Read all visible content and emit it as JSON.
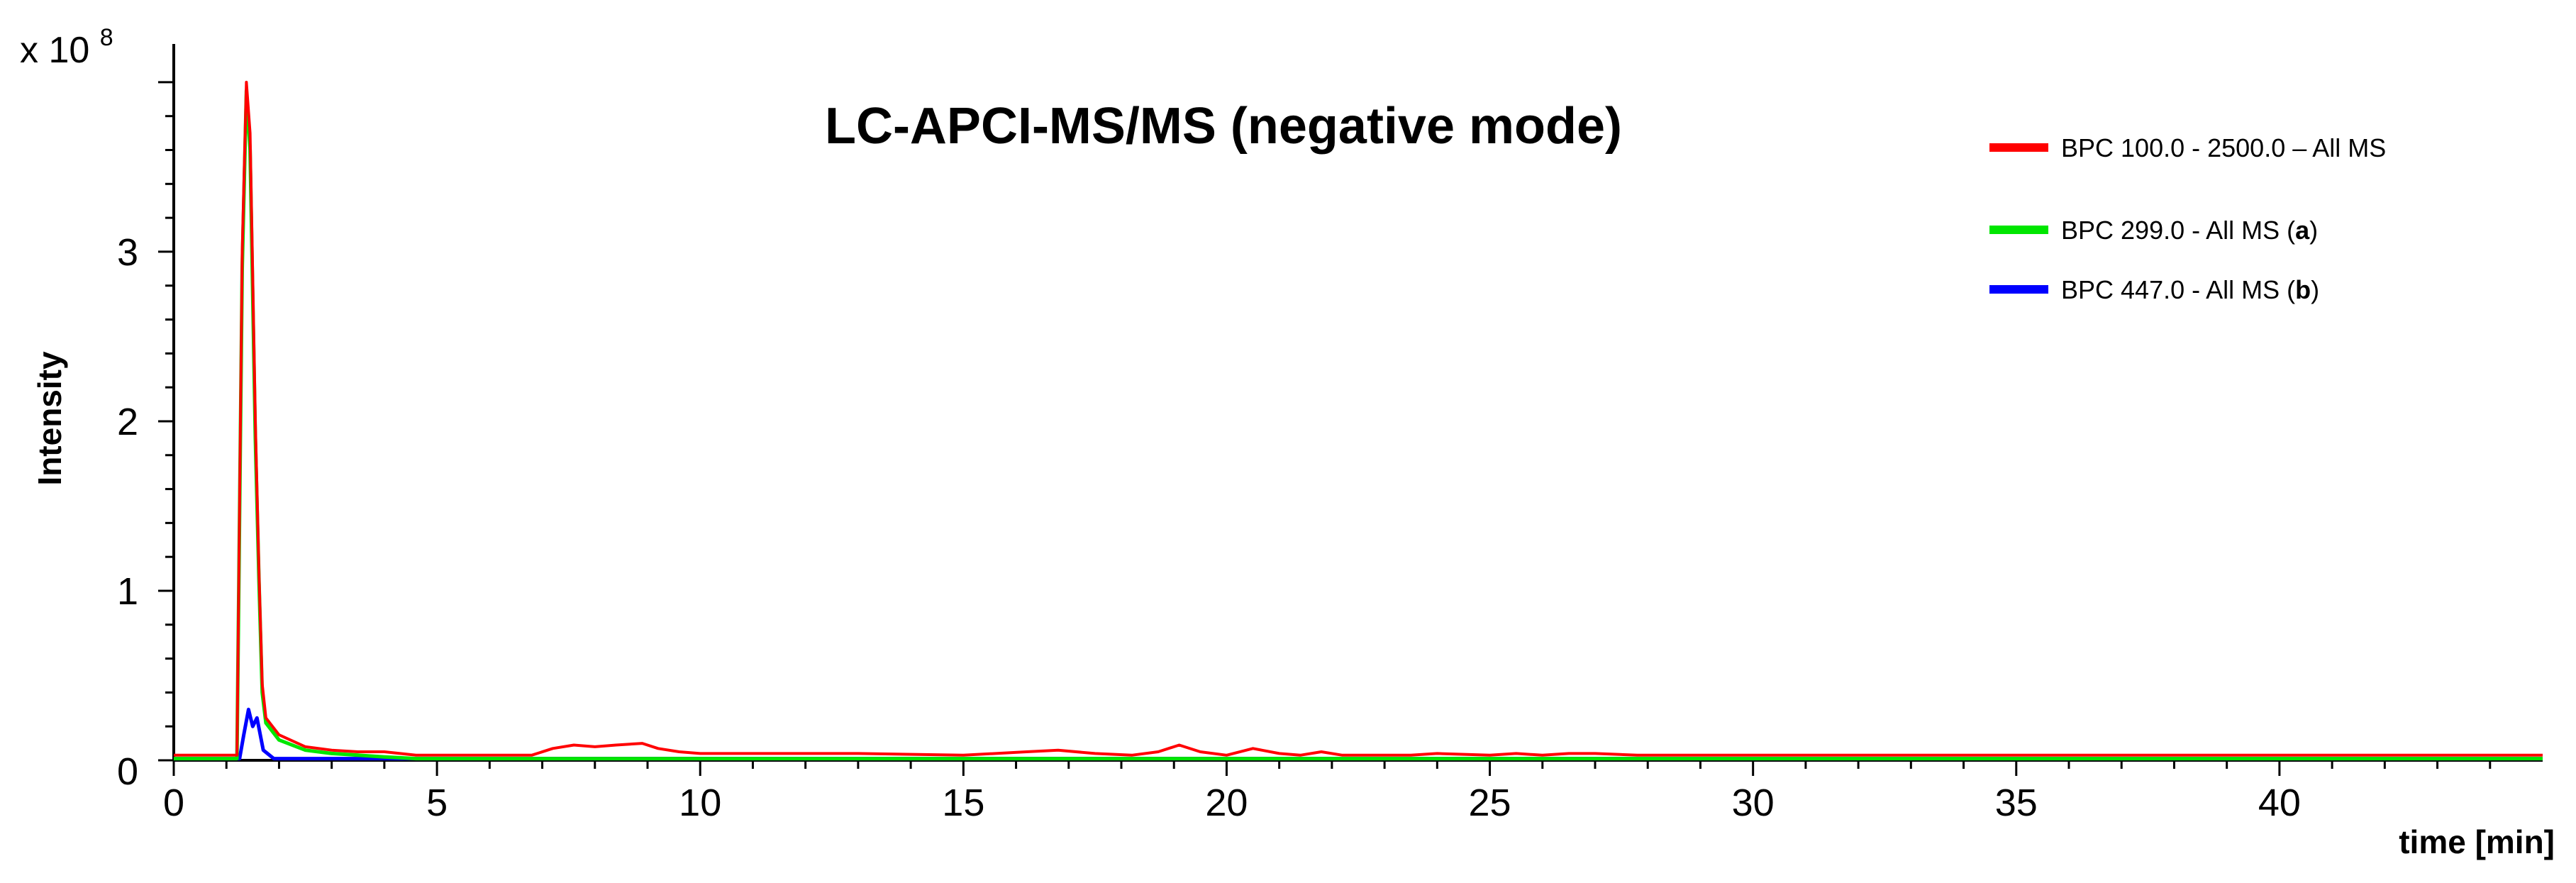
{
  "chart_data": {
    "type": "line",
    "title": "LC-APCI-MS/MS (negative mode)",
    "xlabel": "time [min]",
    "ylabel": "Intensity",
    "y_multiplier": {
      "base": "x 10",
      "exponent": "8"
    },
    "xlim": [
      0,
      45
    ],
    "ylim": [
      0,
      4.1
    ],
    "x_ticks": [
      0,
      5,
      10,
      15,
      20,
      25,
      30,
      35,
      40
    ],
    "y_ticks": [
      0,
      1,
      2,
      3
    ],
    "grid": false,
    "legend_position": "top-right",
    "series": [
      {
        "name": "BPC 100.0 - 2500.0 – All MS",
        "color": "#ff0000",
        "x": [
          0,
          1.2,
          1.3,
          1.38,
          1.45,
          1.55,
          1.62,
          1.68,
          1.75,
          2.0,
          2.5,
          3.0,
          3.5,
          4.0,
          4.3,
          4.6,
          5.0,
          6.8,
          7.2,
          7.6,
          8.0,
          8.4,
          8.9,
          9.2,
          9.6,
          10.0,
          11.0,
          13.0,
          15.0,
          16.2,
          16.8,
          17.5,
          18.2,
          18.7,
          19.1,
          19.5,
          20.0,
          20.5,
          21.0,
          21.4,
          21.8,
          22.2,
          23.5,
          24.0,
          25.0,
          25.5,
          26.0,
          26.5,
          27.0,
          27.8,
          28.3,
          30.0,
          35.0,
          40.0,
          45.0
        ],
        "y": [
          0.03,
          0.03,
          3.0,
          4.0,
          3.7,
          2.0,
          1.1,
          0.45,
          0.25,
          0.15,
          0.08,
          0.06,
          0.05,
          0.05,
          0.04,
          0.03,
          0.03,
          0.03,
          0.07,
          0.09,
          0.08,
          0.09,
          0.1,
          0.07,
          0.05,
          0.04,
          0.04,
          0.04,
          0.03,
          0.05,
          0.06,
          0.04,
          0.03,
          0.05,
          0.09,
          0.05,
          0.03,
          0.07,
          0.04,
          0.03,
          0.05,
          0.03,
          0.03,
          0.04,
          0.03,
          0.04,
          0.03,
          0.04,
          0.04,
          0.03,
          0.03,
          0.03,
          0.03,
          0.03,
          0.03
        ]
      },
      {
        "name": "BPC 299.0 - All MS (a)",
        "name_plain": "BPC 299.0 - All MS (",
        "name_bold": "a",
        "name_close": ")",
        "color": "#00e600",
        "x": [
          0,
          1.2,
          1.3,
          1.38,
          1.45,
          1.55,
          1.62,
          1.68,
          1.75,
          2.0,
          2.5,
          3.0,
          3.5,
          4.0,
          4.3,
          4.6,
          5.0,
          10.0,
          20.0,
          30.0,
          45.0
        ],
        "y": [
          0.01,
          0.01,
          2.9,
          3.95,
          3.6,
          1.9,
          1.05,
          0.4,
          0.22,
          0.12,
          0.06,
          0.04,
          0.03,
          0.02,
          0.015,
          0.01,
          0.01,
          0.01,
          0.01,
          0.01,
          0.01
        ]
      },
      {
        "name": "BPC 447.0 - All MS (b)",
        "name_plain": "BPC 447.0 - All MS (",
        "name_bold": "b",
        "name_close": ")",
        "color": "#0000ff",
        "x": [
          0,
          1.25,
          1.33,
          1.42,
          1.5,
          1.58,
          1.7,
          1.9,
          5.0,
          10.0,
          20.0,
          30.0,
          45.0
        ],
        "y": [
          0.01,
          0.01,
          0.15,
          0.3,
          0.2,
          0.25,
          0.06,
          0.01,
          0.01,
          0.01,
          0.01,
          0.01,
          0.01
        ]
      }
    ]
  }
}
